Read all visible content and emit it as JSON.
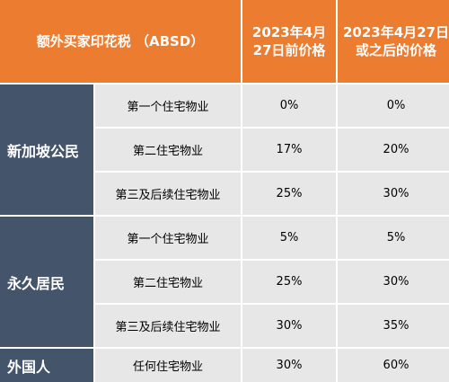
{
  "header": {
    "title": "额外买家印花税 （ABSD）",
    "col_before_line1": "2023年4月",
    "col_before_line2": "27日前价格",
    "col_after_line1": "2023年4月27日",
    "col_after_line2": "或之后的价格"
  },
  "groups": [
    {
      "name": "新加坡公民",
      "rows": [
        {
          "label": "第一个住宅物业",
          "before": "0%",
          "after": "0%"
        },
        {
          "label": "第二住宅物业",
          "before": "17%",
          "after": "20%"
        },
        {
          "label": "第三及后续住宅物业",
          "before": "25%",
          "after": "30%"
        }
      ]
    },
    {
      "name": "永久居民",
      "rows": [
        {
          "label": "第一个住宅物业",
          "before": "5%",
          "after": "5%"
        },
        {
          "label": "第二住宅物业",
          "before": "25%",
          "after": "30%"
        },
        {
          "label": "第三及后续住宅物业",
          "before": "30%",
          "after": "35%"
        }
      ]
    },
    {
      "name": "外国人",
      "rows": [
        {
          "label": "任何住宅物业",
          "before": "30%",
          "after": "60%"
        }
      ]
    }
  ],
  "colors": {
    "header_bg": "#ec7c30",
    "group_bg": "#44546a",
    "cell_bg": "#e7e7e7"
  }
}
